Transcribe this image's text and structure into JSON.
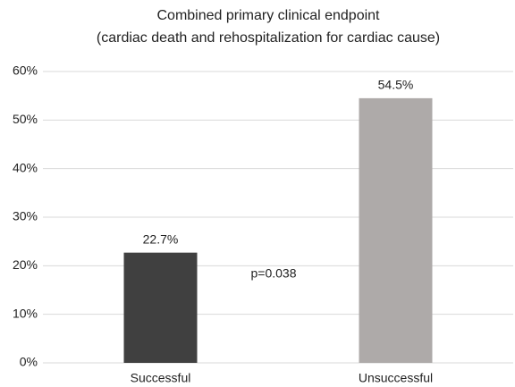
{
  "chart_data": {
    "type": "bar",
    "title": "Combined primary clinical endpoint",
    "subtitle": "(cardiac death and rehospitalization for cardiac cause)",
    "categories": [
      "Successful",
      "Unsuccessful"
    ],
    "values": [
      22.7,
      54.5
    ],
    "value_labels": [
      "22.7%",
      "54.5%"
    ],
    "colors": [
      "#404040",
      "#aeaaa9"
    ],
    "ylim": [
      0,
      60
    ],
    "yticks": [
      {
        "value": 0,
        "label": "0%"
      },
      {
        "value": 10,
        "label": "10%"
      },
      {
        "value": 20,
        "label": "20%"
      },
      {
        "value": 30,
        "label": "30%"
      },
      {
        "value": 40,
        "label": "40%"
      },
      {
        "value": 50,
        "label": "50%"
      },
      {
        "value": 60,
        "label": "60%"
      }
    ],
    "grid": true,
    "annotation": "p=0.038"
  }
}
